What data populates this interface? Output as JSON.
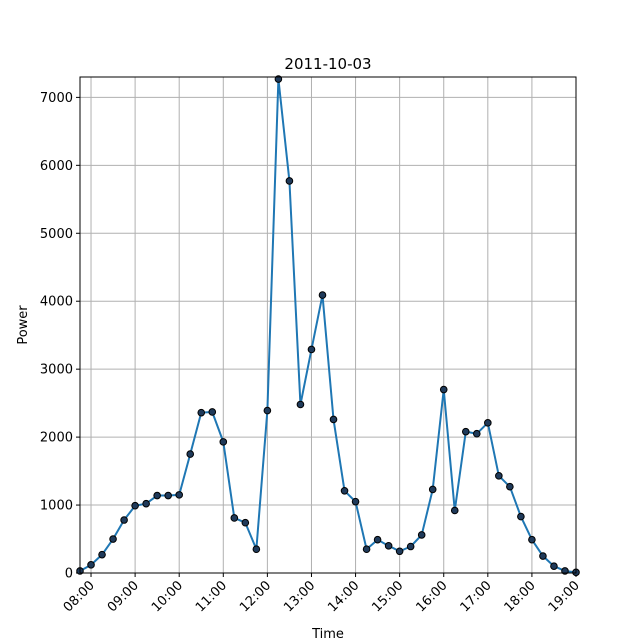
{
  "chart_data": {
    "type": "line",
    "title": "2011-10-03",
    "xlabel": "Time",
    "ylabel": "Power",
    "xlim": [
      "07:45",
      "19:00"
    ],
    "ylim": [
      0,
      7300
    ],
    "grid": true,
    "line_color": "#1f77b4",
    "marker_face_color": "#1f3a5a",
    "marker_edge_color": "#000000",
    "x_ticks": [
      "08:00",
      "09:00",
      "10:00",
      "11:00",
      "12:00",
      "13:00",
      "14:00",
      "15:00",
      "16:00",
      "17:00",
      "18:00",
      "19:00"
    ],
    "y_ticks": [
      0,
      1000,
      2000,
      3000,
      4000,
      5000,
      6000,
      7000
    ],
    "series": [
      {
        "x": [
          "07:45",
          "08:00",
          "08:15",
          "08:30",
          "08:45",
          "09:00",
          "09:15",
          "09:30",
          "09:45",
          "10:00",
          "10:15",
          "10:30",
          "10:45",
          "11:00",
          "11:15",
          "11:30",
          "11:45",
          "12:00",
          "12:15",
          "12:30",
          "12:45",
          "13:00",
          "13:15",
          "13:30",
          "13:45",
          "14:00",
          "14:15",
          "14:30",
          "14:45",
          "15:00",
          "15:15",
          "15:30",
          "15:45",
          "16:00",
          "16:15",
          "16:30",
          "16:45",
          "17:00",
          "17:15",
          "17:30",
          "17:45",
          "18:00",
          "18:15",
          "18:30",
          "18:45",
          "19:00"
        ],
        "y": [
          30,
          120,
          270,
          500,
          780,
          990,
          1020,
          1140,
          1140,
          1150,
          1750,
          2360,
          2370,
          1930,
          810,
          740,
          350,
          2390,
          7270,
          5770,
          2480,
          3290,
          4090,
          2260,
          1210,
          1050,
          350,
          490,
          400,
          320,
          390,
          560,
          1230,
          2700,
          920,
          2080,
          2050,
          2210,
          1430,
          1270,
          830,
          490,
          250,
          100,
          30,
          10
        ]
      }
    ]
  }
}
